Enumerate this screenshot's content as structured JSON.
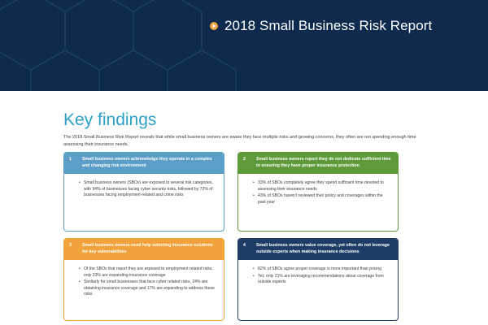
{
  "banner": {
    "title": "2018 Small Business Risk Report",
    "play_icon": "play-circle-icon",
    "colors": {
      "background": "#0e2a4d",
      "accent": "#f0a33a"
    }
  },
  "key_findings": {
    "heading": "Key findings",
    "intro": "The 2018 Small Business Risk Report reveals that while small business owners are aware they face multiple risks and growing concerns, they often are not spending enough time assessing their insurance needs.",
    "heading_color": "#2da0c5"
  },
  "cards": [
    {
      "number": "1",
      "title": "Small business owners acknowledge they operate in a complex and changing risk environment",
      "color": "#5b9ec7",
      "bullets": [
        "Small business owners (SBOs) are exposed to several risk categories, with 94% of businesses facing cyber security risks, followed by 72% of businesses facing employment-related and crime risks"
      ]
    },
    {
      "number": "2",
      "title": "Small business owners report they do not dedicate sufficient time to ensuring they have proper insurance protection",
      "color": "#5f9a3a",
      "bullets": [
        "33% of SBOs completely agree they spend sufficient time devoted to assessing their insurance needs",
        "43% of SBOs haven't reviewed their policy and coverages within the past year"
      ]
    },
    {
      "number": "3",
      "title": "Small business owners need help selecting insurance solutions for key vulnerabilities",
      "color": "#f0a33a",
      "bullets": [
        "Of the SBOs that report they are exposed to employment related risks, only 23% are expanding insurance coverage",
        "Similarly for small businesses that face cyber related risks, 24% are obtaining insurance coverage and 17% are expanding to address these risks"
      ]
    },
    {
      "number": "4",
      "title": "Small business owners value coverage, yet often do not leverage outside experts when making insurance decisions",
      "color": "#1e3d66",
      "bullets": [
        "82% of SBOs agree proper coverage is more important than pricing",
        "Yet, only 21% are leveraging recommendations about coverage from outside experts"
      ]
    }
  ]
}
